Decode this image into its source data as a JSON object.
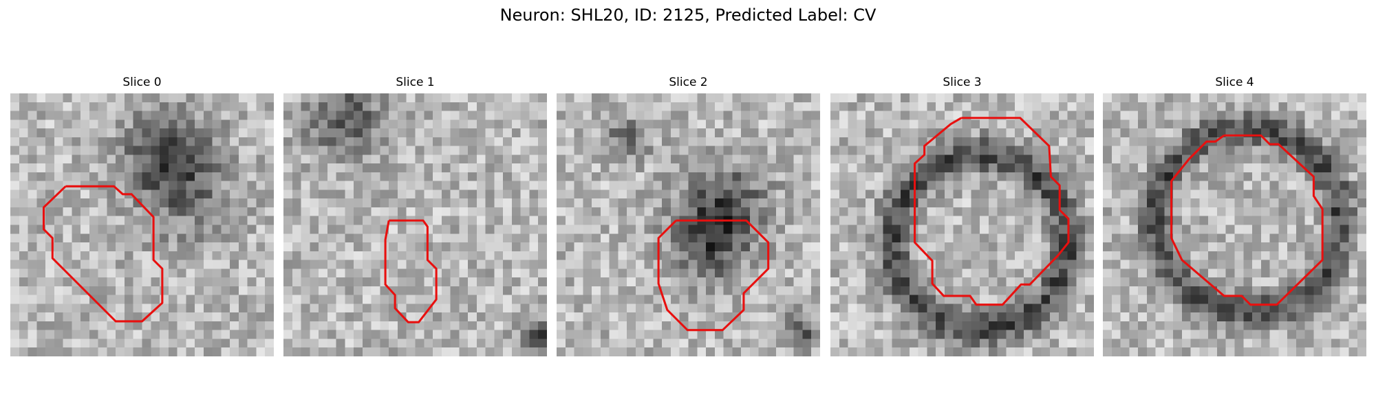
{
  "title": "Neuron: SHL20, ID: 2125, Predicted Label: CV",
  "panels": [
    {
      "title": "Slice 0"
    },
    {
      "title": "Slice 1"
    },
    {
      "title": "Slice 2"
    },
    {
      "title": "Slice 3"
    },
    {
      "title": "Slice 4"
    }
  ]
}
